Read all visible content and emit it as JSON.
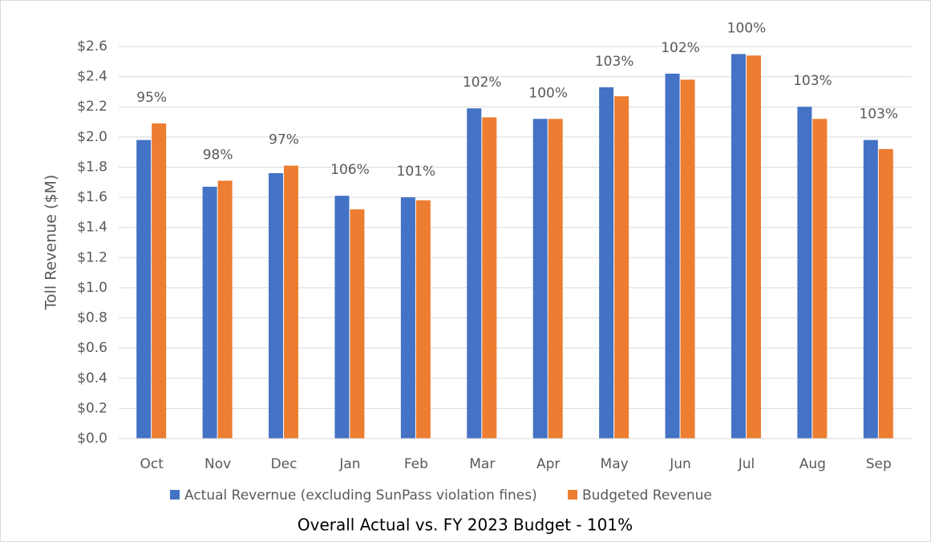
{
  "chart_data": {
    "type": "grouped_bar",
    "title": "Overall Actual vs. FY 2023 Budget - 101%",
    "y_label": "Toll Revenue ($M)",
    "categories": [
      "Oct",
      "Nov",
      "Dec",
      "Jan",
      "Feb",
      "Mar",
      "Apr",
      "May",
      "Jun",
      "Jul",
      "Aug",
      "Sep"
    ],
    "series": [
      {
        "name": "Actual Revernue (excluding SunPass violation fines)",
        "color": "#4472c4",
        "values": [
          1.98,
          1.67,
          1.76,
          1.61,
          1.6,
          2.19,
          2.12,
          2.33,
          2.42,
          2.55,
          2.2,
          1.98
        ]
      },
      {
        "name": "Budgeted Revenue",
        "color": "#ed7d31",
        "values": [
          2.09,
          1.71,
          1.81,
          1.52,
          1.58,
          2.13,
          2.12,
          2.27,
          2.38,
          2.54,
          2.12,
          1.92
        ]
      }
    ],
    "annotations": [
      "95%",
      "98%",
      "97%",
      "106%",
      "101%",
      "102%",
      "100%",
      "103%",
      "102%",
      "100%",
      "103%",
      "103%"
    ],
    "ylim": [
      0,
      2.6
    ],
    "yticks": [
      {
        "value": 0,
        "label": "$0.0"
      },
      {
        "value": 0.2,
        "label": "$0.2"
      },
      {
        "value": 0.4,
        "label": "$0.4"
      },
      {
        "value": 0.6,
        "label": "$0.6"
      },
      {
        "value": 0.8,
        "label": "$0.8"
      },
      {
        "value": 1.0,
        "label": "$1.0"
      },
      {
        "value": 1.2,
        "label": "$1.2"
      },
      {
        "value": 1.4,
        "label": "$1.4"
      },
      {
        "value": 1.6,
        "label": "$1.6"
      },
      {
        "value": 1.8,
        "label": "$1.8"
      },
      {
        "value": 2.0,
        "label": "$2.0"
      },
      {
        "value": 2.2,
        "label": "$2.2"
      },
      {
        "value": 2.4,
        "label": "$2.4"
      },
      {
        "value": 2.6,
        "label": "$2.6"
      }
    ],
    "grid": true,
    "legend": "bottom"
  }
}
